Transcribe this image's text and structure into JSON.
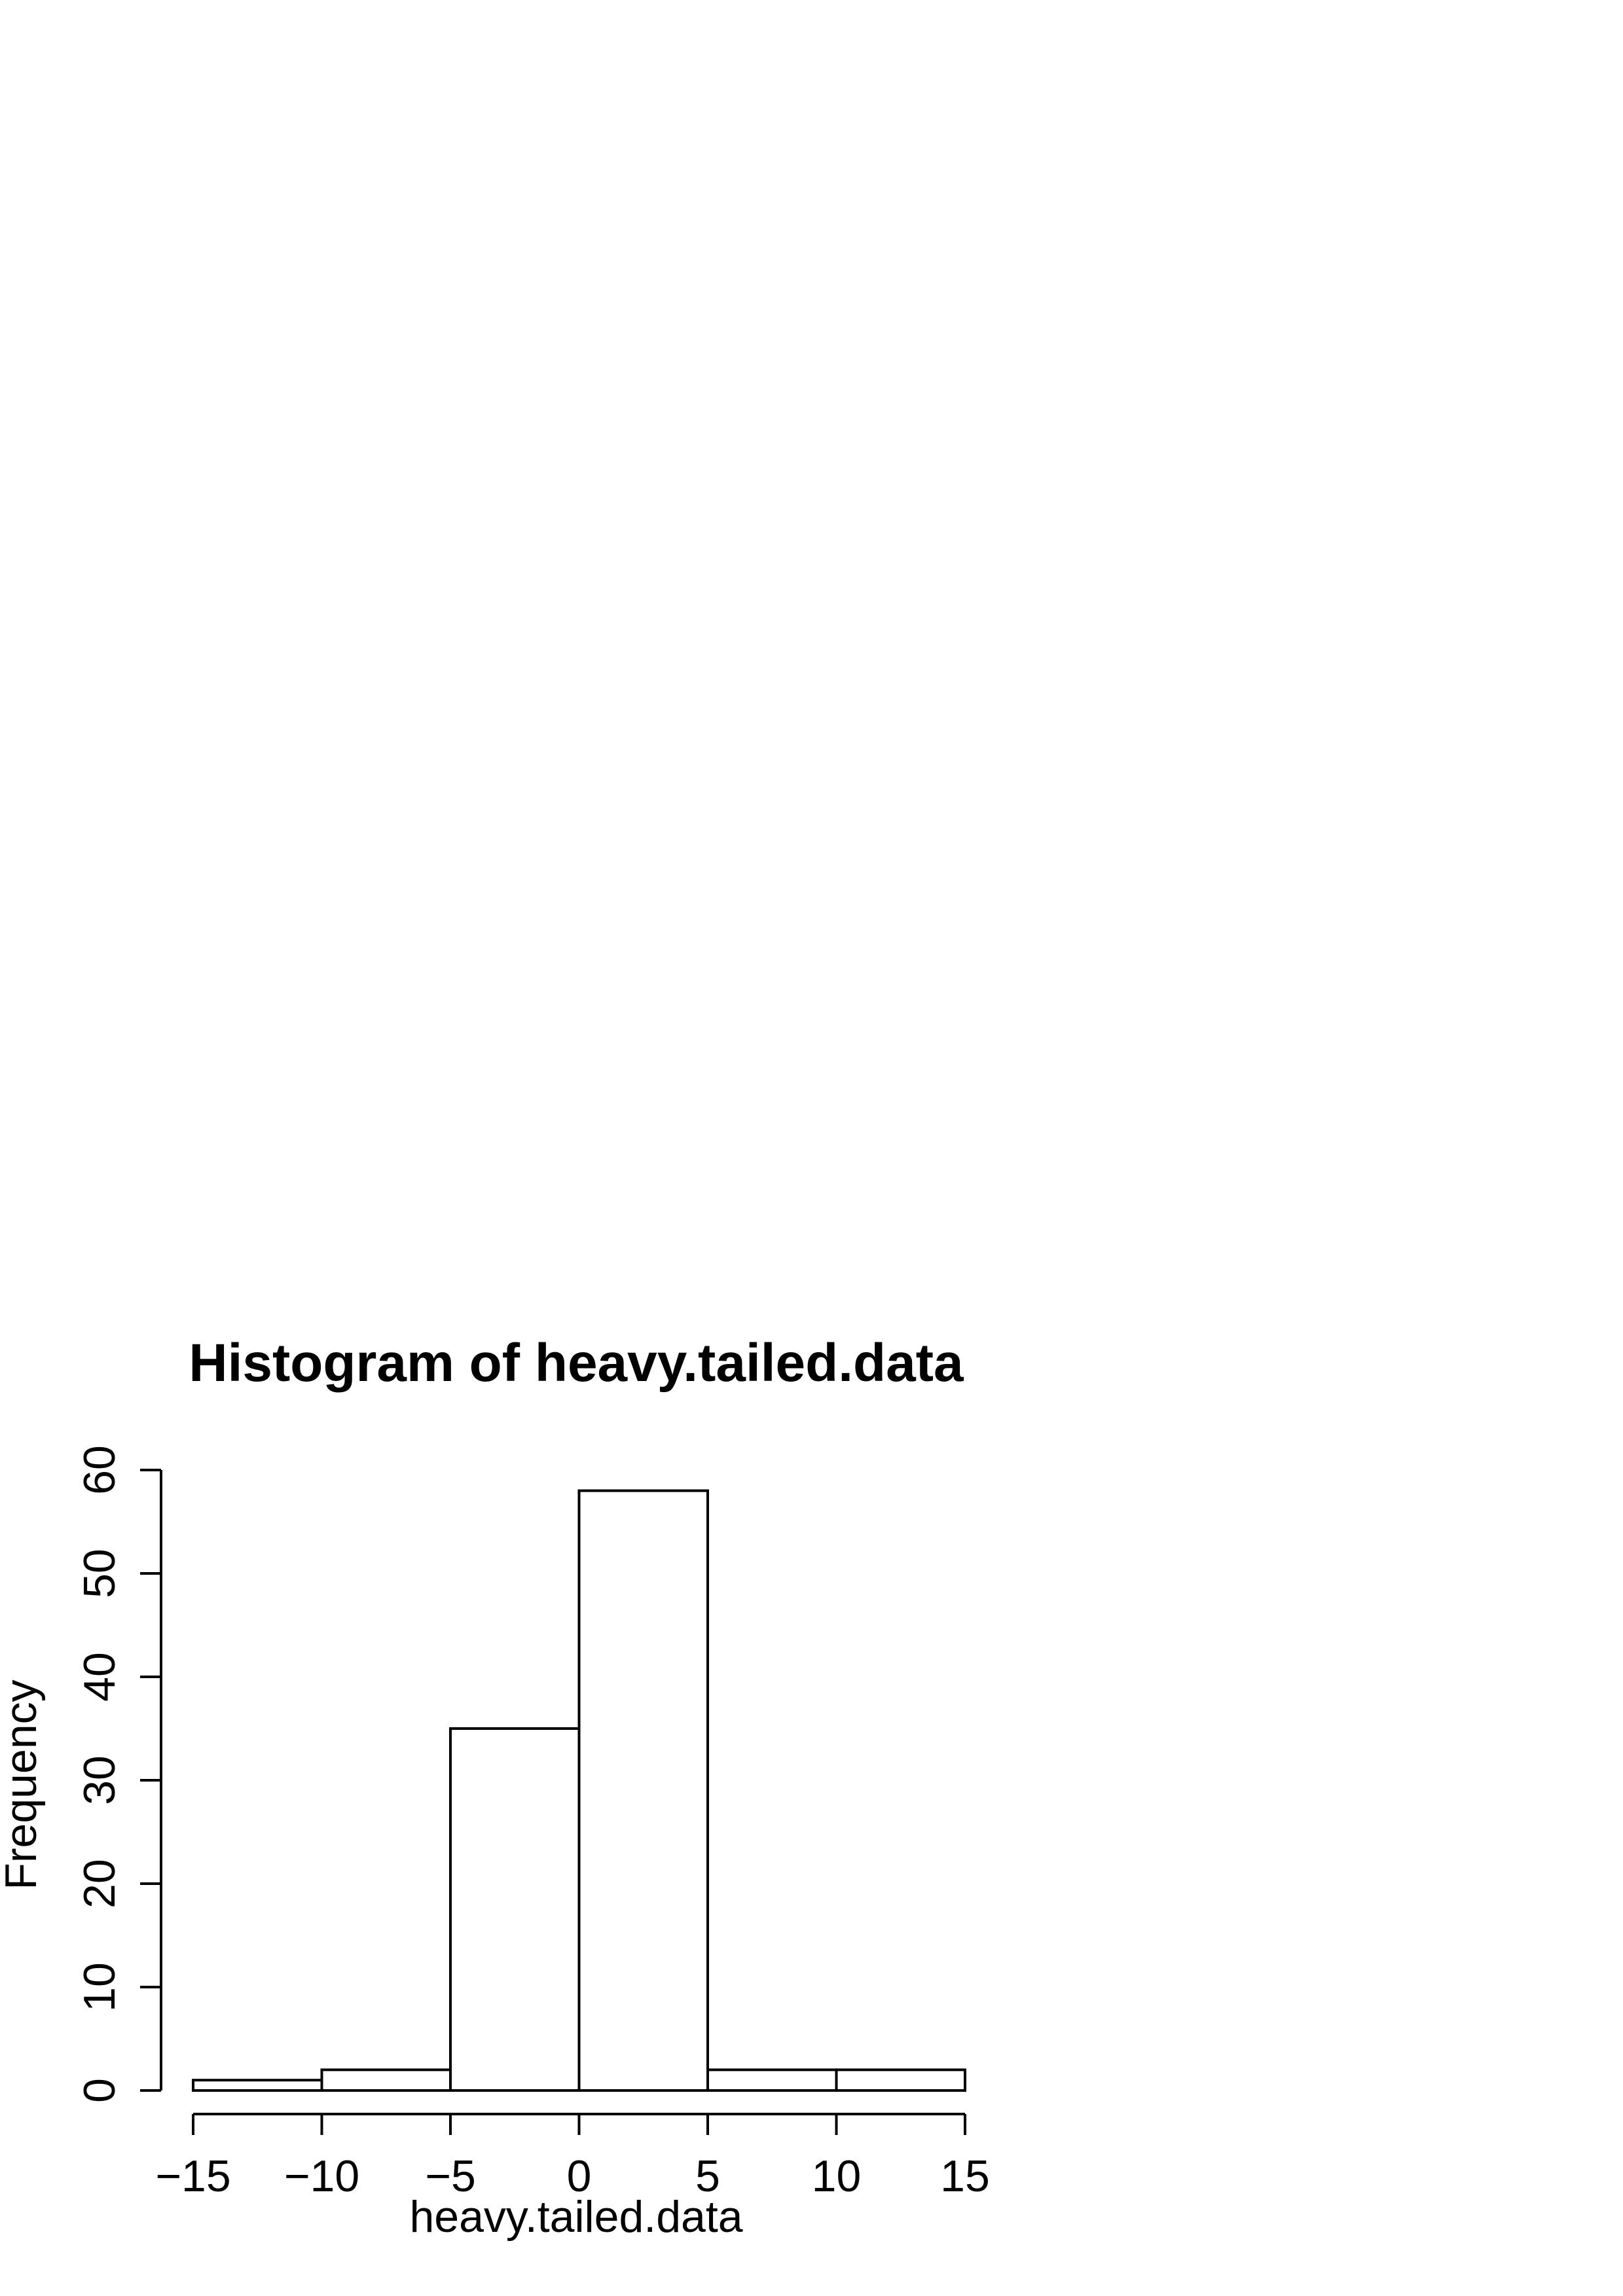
{
  "chart_data": {
    "type": "bar",
    "title": "Histogram of heavy.tailed.data",
    "xlabel": "heavy.tailed.data",
    "ylabel": "Frequency",
    "bins": [
      {
        "from": -15,
        "to": -10,
        "count": 1
      },
      {
        "from": -10,
        "to": -5,
        "count": 2
      },
      {
        "from": -5,
        "to": 0,
        "count": 35
      },
      {
        "from": 0,
        "to": 5,
        "count": 58
      },
      {
        "from": 5,
        "to": 10,
        "count": 2
      },
      {
        "from": 10,
        "to": 15,
        "count": 2
      }
    ],
    "xlim": [
      -15,
      15
    ],
    "ylim": [
      0,
      60
    ],
    "x_ticks": [
      -15,
      -10,
      -5,
      0,
      5,
      10,
      15
    ],
    "x_tick_labels": [
      "−15",
      "−10",
      "−5",
      "0",
      "5",
      "10",
      "15"
    ],
    "y_ticks": [
      0,
      10,
      20,
      30,
      40,
      50,
      60
    ],
    "y_tick_labels": [
      "0",
      "10",
      "20",
      "30",
      "40",
      "50",
      "60"
    ],
    "grid": false,
    "legend": "none",
    "colors": {
      "bar_fill": "#ffffff",
      "bar_stroke": "#000000"
    }
  }
}
